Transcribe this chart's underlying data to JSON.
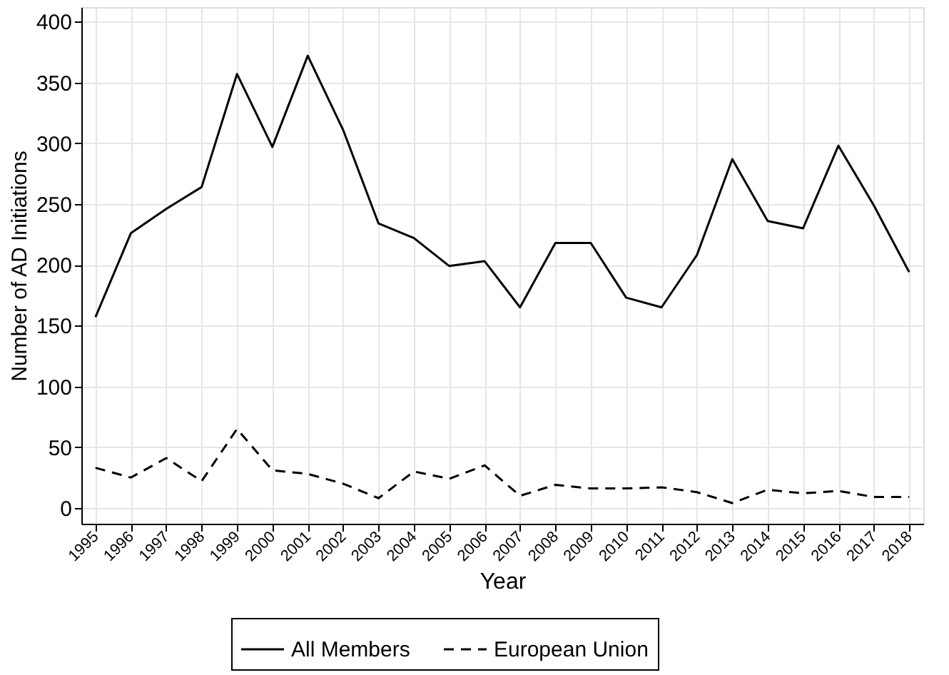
{
  "chart_data": {
    "type": "line",
    "xlabel": "Year",
    "ylabel": "Number of AD Initiations",
    "categories": [
      "1995",
      "1996",
      "1997",
      "1998",
      "1999",
      "2000",
      "2001",
      "2002",
      "2003",
      "2004",
      "2005",
      "2006",
      "2007",
      "2008",
      "2009",
      "2010",
      "2011",
      "2012",
      "2013",
      "2014",
      "2015",
      "2016",
      "2017",
      "2018"
    ],
    "series": [
      {
        "name": "All Members",
        "color": "#000000",
        "line_style": "solid",
        "values": [
          157,
          226,
          246,
          264,
          357,
          297,
          372,
          311,
          234,
          222,
          199,
          203,
          165,
          218,
          218,
          173,
          165,
          208,
          287,
          236,
          230,
          298,
          249,
          194
        ]
      },
      {
        "name": "European Union",
        "color": "#000000",
        "line_style": "dashed",
        "values": [
          33,
          25,
          41,
          22,
          65,
          31,
          28,
          20,
          8,
          30,
          24,
          35,
          10,
          19,
          16,
          16,
          17,
          13,
          4,
          15,
          12,
          14,
          9,
          9
        ]
      }
    ],
    "ylim": [
      -13,
      412
    ],
    "yticks": [
      0,
      50,
      100,
      150,
      200,
      250,
      300,
      350,
      400
    ],
    "grid": true,
    "legend": "bottom",
    "marker": "none"
  }
}
